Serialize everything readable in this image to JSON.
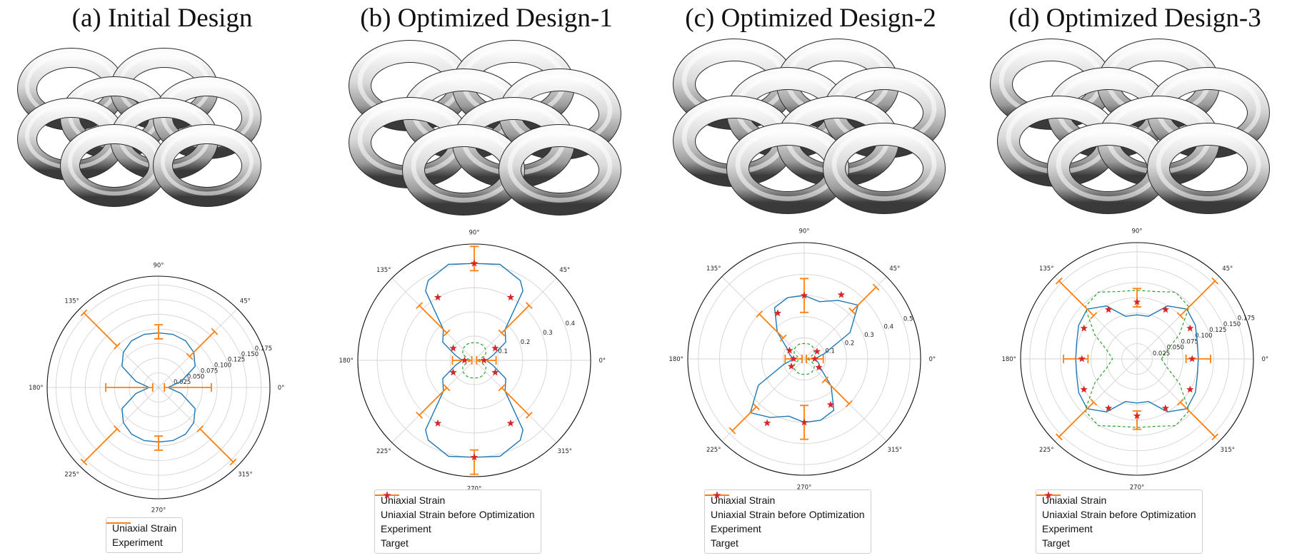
{
  "colors": {
    "model": "#1f77b4",
    "before": "#2ca02c",
    "experiment": "#ff7f0e",
    "target": "#d62728"
  },
  "legend_labels": {
    "model": "Uniaxial Strain",
    "before": "Uniaxial Strain before Optimization",
    "experiment": "Experiment",
    "target": "Target"
  },
  "panels": [
    {
      "title": "(a) Initial Design"
    },
    {
      "title": "(b) Optimized Design-1"
    },
    {
      "title": "(c) Optimized Design-2"
    },
    {
      "title": "(d) Optimized Design-3"
    }
  ],
  "chart_data": [
    {
      "type": "polar",
      "theta_ticks": [
        "0°",
        "45°",
        "90°",
        "135°",
        "180°",
        "225°",
        "270°",
        "315°"
      ],
      "r_ticks": [
        "0.025",
        "0.050",
        "0.075",
        "0.100",
        "0.125",
        "0.150",
        "0.175"
      ],
      "r_tick_values": [
        0.025,
        0.05,
        0.075,
        0.1,
        0.125,
        0.15,
        0.175
      ],
      "rmax": 0.19,
      "legend": [
        "Uniaxial Strain",
        "Experiment"
      ],
      "series": [
        {
          "name": "Uniaxial Strain",
          "style": "line",
          "theta_deg": [
            0,
            15,
            30,
            45,
            60,
            75,
            90,
            105,
            120,
            135,
            150,
            165,
            180,
            195,
            210,
            225,
            240,
            255,
            270,
            285,
            300,
            315,
            330,
            345,
            360
          ],
          "r": [
            0.016,
            0.04,
            0.072,
            0.085,
            0.092,
            0.094,
            0.093,
            0.094,
            0.092,
            0.085,
            0.072,
            0.04,
            0.016,
            0.04,
            0.072,
            0.085,
            0.092,
            0.094,
            0.093,
            0.094,
            0.092,
            0.085,
            0.072,
            0.04,
            0.016
          ]
        },
        {
          "name": "Experiment",
          "style": "errorbar",
          "theta_deg": [
            0,
            45,
            90,
            135,
            180,
            225,
            270,
            315
          ],
          "r": [
            0.05,
            0.105,
            0.095,
            0.14,
            0.05,
            0.14,
            0.095,
            0.14
          ],
          "err": [
            0.04,
            0.03,
            0.012,
            0.04,
            0.04,
            0.04,
            0.012,
            0.04
          ]
        }
      ]
    },
    {
      "type": "polar",
      "theta_ticks": [
        "0°",
        "45°",
        "90°",
        "135°",
        "180°",
        "225°",
        "270°",
        "315°"
      ],
      "r_ticks": [
        "0.1",
        "0.2",
        "0.3",
        "0.4"
      ],
      "r_tick_values": [
        0.1,
        0.2,
        0.3,
        0.4
      ],
      "rmax": 0.48,
      "legend": [
        "Uniaxial Strain",
        "Uniaxial Strain before Optimization",
        "Experiment",
        "Target"
      ],
      "series": [
        {
          "name": "Uniaxial Strain",
          "style": "line",
          "theta_deg": [
            0,
            15,
            30,
            45,
            55,
            60,
            75,
            90,
            105,
            120,
            125,
            135,
            150,
            165,
            180,
            195,
            210,
            225,
            235,
            240,
            255,
            270,
            285,
            300,
            305,
            315,
            330,
            345,
            360
          ],
          "r": [
            0.05,
            0.08,
            0.15,
            0.18,
            0.35,
            0.38,
            0.41,
            0.4,
            0.41,
            0.38,
            0.35,
            0.18,
            0.15,
            0.08,
            0.05,
            0.08,
            0.15,
            0.18,
            0.35,
            0.38,
            0.41,
            0.4,
            0.41,
            0.38,
            0.35,
            0.18,
            0.15,
            0.08,
            0.05
          ]
        },
        {
          "name": "Uniaxial Strain before Optimization",
          "style": "dashed",
          "theta_deg": [
            0,
            15,
            30,
            45,
            60,
            75,
            90,
            105,
            120,
            135,
            150,
            165,
            180,
            195,
            210,
            225,
            240,
            255,
            270,
            285,
            300,
            315,
            330,
            345,
            360
          ],
          "r": [
            0.012,
            0.03,
            0.055,
            0.066,
            0.072,
            0.074,
            0.073,
            0.074,
            0.072,
            0.066,
            0.055,
            0.03,
            0.012,
            0.03,
            0.055,
            0.066,
            0.072,
            0.074,
            0.073,
            0.074,
            0.072,
            0.066,
            0.055,
            0.03,
            0.012
          ]
        },
        {
          "name": "Experiment",
          "style": "errorbar",
          "theta_deg": [
            0,
            45,
            90,
            135,
            180,
            225,
            270,
            315
          ],
          "r": [
            0.05,
            0.24,
            0.42,
            0.24,
            0.05,
            0.24,
            0.42,
            0.24
          ],
          "err": [
            0.04,
            0.08,
            0.05,
            0.08,
            0.04,
            0.08,
            0.05,
            0.08
          ]
        },
        {
          "name": "Target",
          "style": "star",
          "theta_deg": [
            0,
            30,
            60,
            90,
            120,
            150,
            180,
            210,
            240,
            270,
            300,
            330
          ],
          "r": [
            0.04,
            0.1,
            0.3,
            0.4,
            0.3,
            0.1,
            0.04,
            0.1,
            0.3,
            0.4,
            0.3,
            0.1
          ]
        }
      ]
    },
    {
      "type": "polar",
      "theta_ticks": [
        "0°",
        "45°",
        "90°",
        "135°",
        "180°",
        "225°",
        "270°",
        "315°"
      ],
      "r_ticks": [
        "0.1",
        "0.2",
        "0.3",
        "0.4",
        "0.5"
      ],
      "r_tick_values": [
        0.1,
        0.2,
        0.3,
        0.4,
        0.5
      ],
      "rmax": 0.55,
      "legend": [
        "Uniaxial Strain",
        "Uniaxial Strain before Optimization",
        "Experiment",
        "Target"
      ],
      "series": [
        {
          "name": "Uniaxial Strain",
          "style": "line",
          "theta_deg": [
            0,
            15,
            30,
            45,
            60,
            75,
            90,
            105,
            120,
            135,
            150,
            165,
            180,
            195,
            210,
            225,
            240,
            255,
            270,
            285,
            300,
            315,
            330,
            345,
            360
          ],
          "r": [
            0.05,
            0.1,
            0.25,
            0.36,
            0.32,
            0.28,
            0.3,
            0.3,
            0.28,
            0.18,
            0.09,
            0.07,
            0.05,
            0.1,
            0.25,
            0.36,
            0.32,
            0.28,
            0.3,
            0.3,
            0.28,
            0.18,
            0.09,
            0.07,
            0.05
          ]
        },
        {
          "name": "Uniaxial Strain before Optimization",
          "style": "dashed",
          "theta_deg": [
            0,
            15,
            30,
            45,
            60,
            75,
            90,
            105,
            120,
            135,
            150,
            165,
            180,
            195,
            210,
            225,
            240,
            255,
            270,
            285,
            300,
            315,
            330,
            345,
            360
          ],
          "r": [
            0.012,
            0.03,
            0.055,
            0.066,
            0.072,
            0.074,
            0.073,
            0.074,
            0.072,
            0.066,
            0.055,
            0.03,
            0.012,
            0.03,
            0.055,
            0.066,
            0.072,
            0.074,
            0.073,
            0.074,
            0.072,
            0.066,
            0.055,
            0.03,
            0.012
          ]
        },
        {
          "name": "Experiment",
          "style": "errorbar",
          "theta_deg": [
            0,
            45,
            90,
            135,
            180,
            225,
            270,
            315
          ],
          "r": [
            0.05,
            0.4,
            0.3,
            0.22,
            0.05,
            0.4,
            0.3,
            0.22
          ],
          "err": [
            0.04,
            0.08,
            0.08,
            0.08,
            0.04,
            0.08,
            0.08,
            0.08
          ]
        },
        {
          "name": "Target",
          "style": "star",
          "theta_deg": [
            0,
            30,
            60,
            90,
            120,
            150,
            180,
            210,
            240,
            270,
            300,
            330
          ],
          "r": [
            0.05,
            0.07,
            0.35,
            0.3,
            0.25,
            0.08,
            0.05,
            0.07,
            0.35,
            0.3,
            0.25,
            0.08
          ]
        }
      ]
    },
    {
      "type": "polar",
      "theta_ticks": [
        "0°",
        "45°",
        "90°",
        "135°",
        "180°",
        "225°",
        "270°",
        "315°"
      ],
      "r_ticks": [
        "0.025",
        "0.050",
        "0.075",
        "0.100",
        "0.125",
        "0.150",
        "0.175"
      ],
      "r_tick_values": [
        0.025,
        0.05,
        0.075,
        0.1,
        0.125,
        0.15,
        0.175
      ],
      "rmax": 0.19,
      "legend": [
        "Uniaxial Strain",
        "Uniaxial Strain before Optimization",
        "Experiment",
        "Target"
      ],
      "series": [
        {
          "name": "Uniaxial Strain",
          "style": "line",
          "theta_deg": [
            0,
            15,
            30,
            45,
            60,
            75,
            90,
            105,
            120,
            135,
            150,
            165,
            180,
            195,
            210,
            225,
            240,
            255,
            270,
            285,
            300,
            315,
            330,
            345,
            360
          ],
          "r": [
            0.1,
            0.102,
            0.11,
            0.115,
            0.1,
            0.072,
            0.072,
            0.072,
            0.1,
            0.115,
            0.11,
            0.102,
            0.1,
            0.102,
            0.11,
            0.115,
            0.1,
            0.072,
            0.072,
            0.072,
            0.1,
            0.115,
            0.11,
            0.102,
            0.1
          ]
        },
        {
          "name": "Uniaxial Strain before Optimization",
          "style": "dashed",
          "theta_deg": [
            0,
            15,
            30,
            45,
            60,
            75,
            90,
            105,
            120,
            135,
            150,
            165,
            180,
            195,
            210,
            225,
            240,
            255,
            270,
            285,
            300,
            315,
            330,
            345,
            360
          ],
          "r": [
            0.04,
            0.05,
            0.08,
            0.12,
            0.126,
            0.114,
            0.112,
            0.114,
            0.126,
            0.12,
            0.08,
            0.05,
            0.04,
            0.05,
            0.08,
            0.12,
            0.126,
            0.114,
            0.112,
            0.114,
            0.126,
            0.12,
            0.08,
            0.05,
            0.04
          ]
        },
        {
          "name": "Experiment",
          "style": "errorbar",
          "theta_deg": [
            0,
            45,
            90,
            135,
            180,
            225,
            270,
            315
          ],
          "r": [
            0.1,
            0.14,
            0.1,
            0.14,
            0.1,
            0.14,
            0.1,
            0.14
          ],
          "err": [
            0.02,
            0.04,
            0.015,
            0.04,
            0.02,
            0.04,
            0.015,
            0.04
          ]
        },
        {
          "name": "Target",
          "style": "star",
          "theta_deg": [
            0,
            30,
            60,
            90,
            120,
            150,
            180,
            210,
            240,
            270,
            300,
            330
          ],
          "r": [
            0.09,
            0.1,
            0.093,
            0.093,
            0.093,
            0.1,
            0.09,
            0.1,
            0.093,
            0.093,
            0.093,
            0.1
          ]
        }
      ]
    }
  ]
}
